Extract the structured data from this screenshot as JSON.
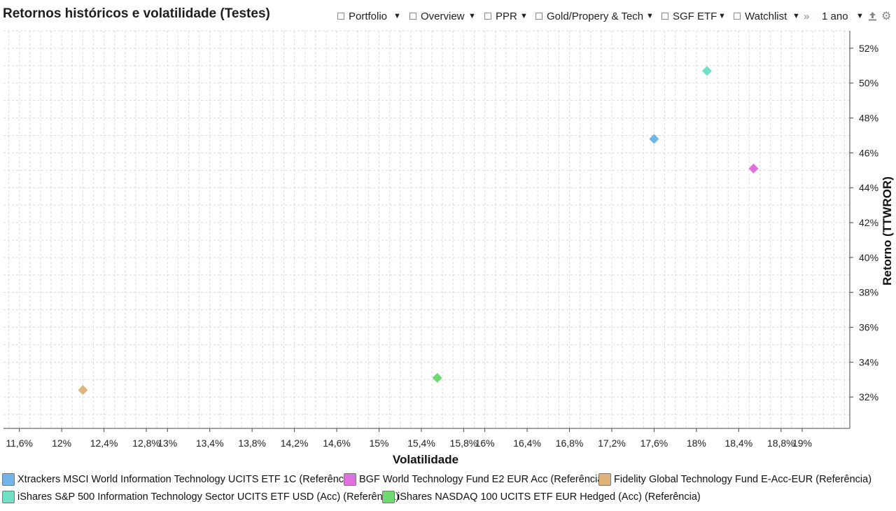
{
  "header": {
    "title": "Retornos históricos e volatilidade (Testes)",
    "tabs": [
      {
        "label": "Portfolio"
      },
      {
        "label": "Overview"
      },
      {
        "label": "PPR"
      },
      {
        "label": "Gold/Propery & Tech"
      },
      {
        "label": "SGF ETF"
      },
      {
        "label": "Watchlist"
      }
    ],
    "more_icon": "double-chevron-right",
    "period": {
      "label": "1 ano"
    },
    "export_icon": "export-icon",
    "settings_icon": "gear-icon"
  },
  "chart_data": {
    "type": "scatter",
    "marker": "diamond",
    "xlabel": "Volatilidade",
    "ylabel": "Retorno (TTWROR)",
    "xlim": [
      11.45,
      19.45
    ],
    "ylim": [
      30.2,
      53.0
    ],
    "grid": true,
    "x_ticks": [
      "11,6%",
      "12%",
      "12,4%",
      "12,8%",
      "13%",
      "13,4%",
      "13,8%",
      "14,2%",
      "14,6%",
      "15%",
      "15,4%",
      "15,8%",
      "16%",
      "16,4%",
      "16,8%",
      "17,2%",
      "17,6%",
      "18%",
      "18,4%",
      "18,8%",
      "19%"
    ],
    "x_tick_values": [
      11.6,
      12.0,
      12.4,
      12.8,
      13.0,
      13.4,
      13.8,
      14.2,
      14.6,
      15.0,
      15.4,
      15.8,
      16.0,
      16.4,
      16.8,
      17.2,
      17.6,
      18.0,
      18.4,
      18.8,
      19.0
    ],
    "y_ticks": [
      "32%",
      "34%",
      "36%",
      "38%",
      "40%",
      "42%",
      "44%",
      "46%",
      "48%",
      "50%",
      "52%"
    ],
    "y_tick_values": [
      32,
      34,
      36,
      38,
      40,
      42,
      44,
      46,
      48,
      50,
      52
    ],
    "series": [
      {
        "name": "Xtrackers MSCI World Information Technology UCITS ETF 1C (Referência)",
        "color": "#6fb5e5",
        "x": 17.6,
        "y": 46.8
      },
      {
        "name": "BGF World Technology Fund E2 EUR Acc (Referência)",
        "color": "#e070dd",
        "x": 18.54,
        "y": 45.1
      },
      {
        "name": "Fidelity Global Technology Fund E-Acc-EUR (Referência)",
        "color": "#e0b37c",
        "x": 12.2,
        "y": 32.4
      },
      {
        "name": "iShares S&P 500 Information Technology Sector UCITS ETF USD (Acc) (Referência)",
        "color": "#70e0c4",
        "x": 18.1,
        "y": 50.7
      },
      {
        "name": "iShares NASDAQ 100 UCITS ETF EUR Hedged (Acc) (Referência)",
        "color": "#70d870",
        "x": 15.55,
        "y": 33.1
      }
    ]
  }
}
